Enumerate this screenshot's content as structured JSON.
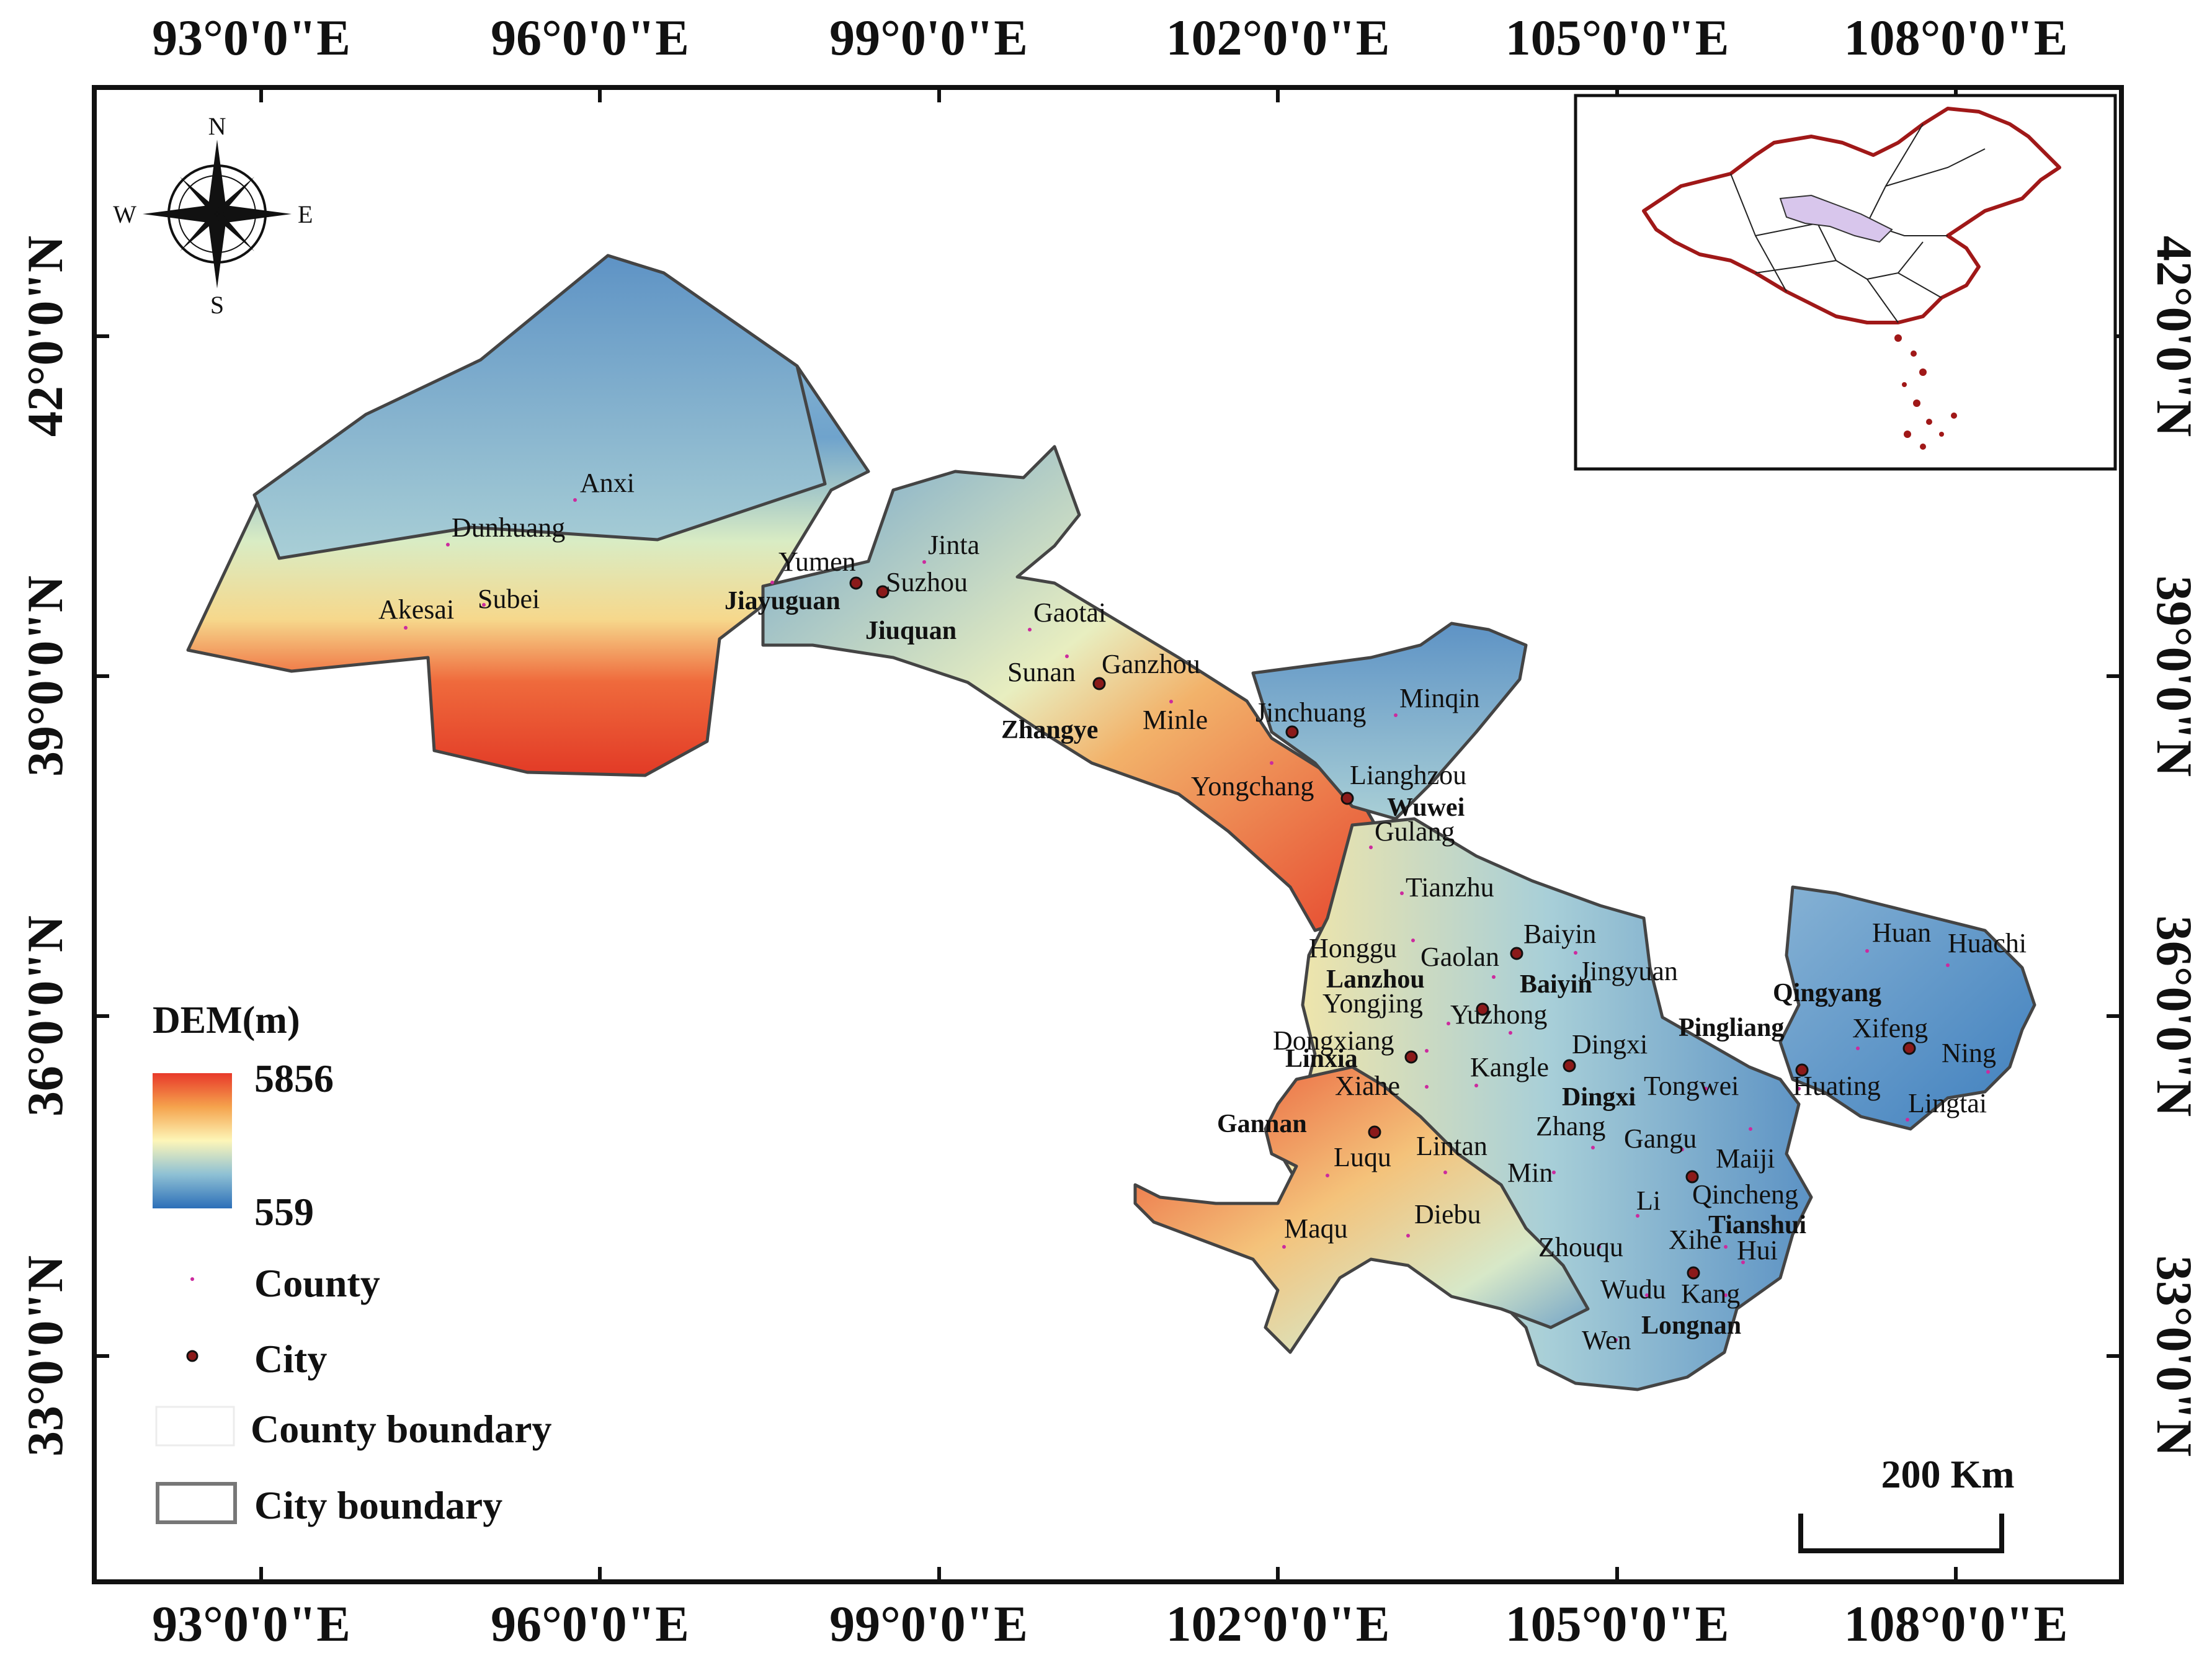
{
  "longitude_labels": [
    "93°0'0\"E",
    "96°0'0\"E",
    "99°0'0\"E",
    "102°0'0\"E",
    "105°0'0\"E",
    "108°0'0\"E"
  ],
  "latitude_labels": [
    "42°0'0\"N",
    "39°0'0\"N",
    "36°0'0\"N",
    "33°0'0\"N"
  ],
  "compass": {
    "north": "N",
    "south": "S",
    "east": "E",
    "west": "W"
  },
  "legend": {
    "title": "DEM(m)",
    "max_value": "5856",
    "min_value": "559",
    "county_label": "County",
    "city_label": "City",
    "county_boundary_label": "County boundary",
    "city_boundary_label": "City boundary"
  },
  "scale_bar": {
    "label": "200 Km"
  },
  "counties": [
    "Anxi",
    "Dunhuang",
    "Akesai",
    "Subei",
    "Yumen",
    "Jinta",
    "Suzhou",
    "Gaotai",
    "Sunan",
    "Ganzhou",
    "Minle",
    "Jinchuang",
    "Minqin",
    "Yongchang",
    "Lianghzou",
    "Gulang",
    "Tianzhu",
    "Honggu",
    "Gaolan",
    "Baiyin",
    "Jingyuan",
    "Yongjing",
    "Yuzhong",
    "Dongxiang",
    "Dingxi",
    "Kangle",
    "Xiahe",
    "Tongwei",
    "Zhang",
    "Gangu",
    "Maiji",
    "Luqu",
    "Lintan",
    "Min",
    "Qincheng",
    "Li",
    "Maqu",
    "Diebu",
    "Zhouqu",
    "Xihe",
    "Hui",
    "Wudu",
    "Kang",
    "Wen",
    "Huan",
    "Huachi",
    "Xifeng",
    "Ning",
    "Huating",
    "Lingtai"
  ],
  "cities": [
    "Jiayuguan",
    "Jiuquan",
    "Zhangye",
    "Wuwei",
    "Lanzhou",
    "Baiyin",
    "Linxia",
    "Gannan",
    "Dingxi",
    "Pingliang",
    "Qingyang",
    "Tianshui",
    "Longnan"
  ],
  "colors": {
    "dem_high": "#e8392a",
    "dem_mid": "#fdf6b8",
    "dem_low": "#2c6fb8",
    "county_dot": "#cc2a9e",
    "city_dot": "#8b1a1a",
    "china_border": "#a01818",
    "gansu_inset": "#d8c6ec"
  }
}
